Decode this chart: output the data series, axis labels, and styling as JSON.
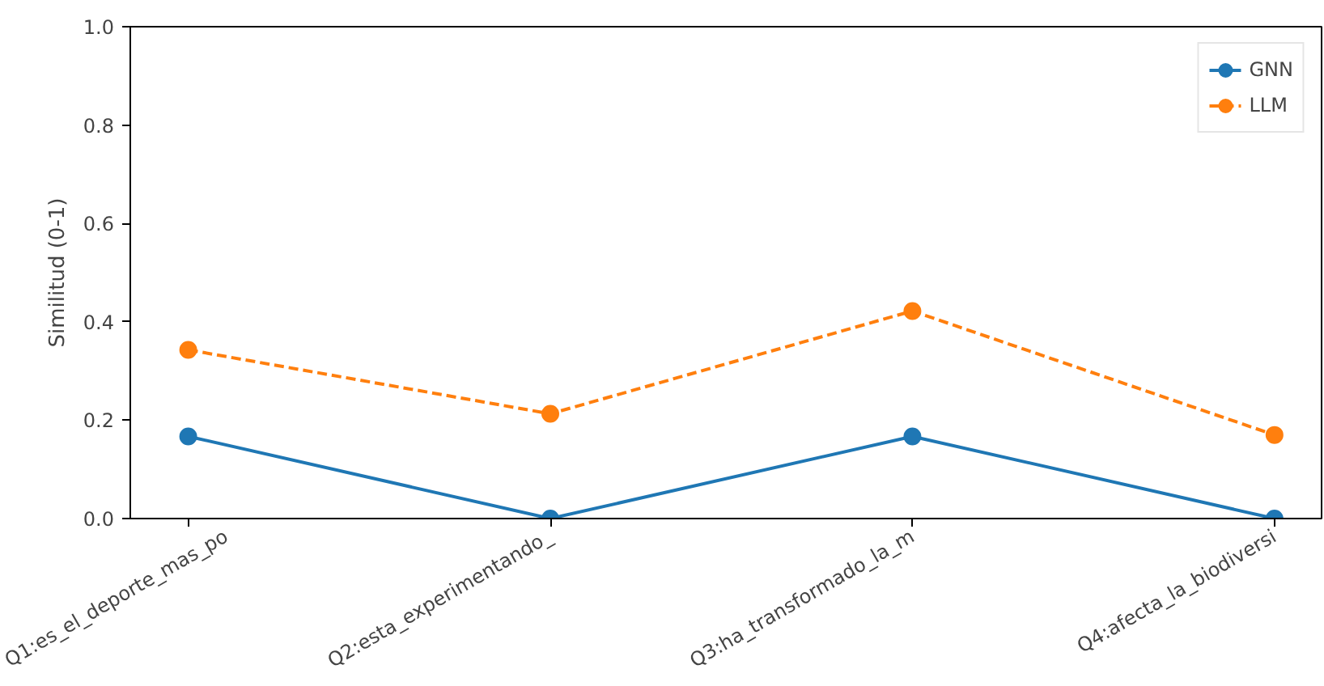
{
  "chart_data": {
    "type": "line",
    "ylabel": "Similitud (0-1)",
    "categories": [
      "Q1:es_el_deporte_mas_po",
      "Q2:esta_experimentando_",
      "Q3:ha_transformado_la_m",
      "Q4:afecta_la_biodiversi"
    ],
    "series": [
      {
        "name": "GNN",
        "color": "#1f77b4",
        "values": [
          0.167,
          0,
          0.167,
          0
        ],
        "marker": "circle",
        "line_style": "solid"
      },
      {
        "name": "LLM",
        "color": "#ff7f0e",
        "values": [
          0.343,
          0.213,
          0.422,
          0.17
        ],
        "marker": "circle",
        "line_style": "dashed"
      }
    ],
    "ylim": [
      0,
      1
    ],
    "yticks": [
      {
        "value": 0,
        "label": "0.0"
      },
      {
        "value": 0.2,
        "label": "0.2"
      },
      {
        "value": 0.4,
        "label": "0.4"
      },
      {
        "value": 0.6,
        "label": "0.6"
      },
      {
        "value": 0.8,
        "label": "0.8"
      },
      {
        "value": 1,
        "label": "1.0"
      }
    ],
    "grid": false,
    "legend": "top right"
  }
}
